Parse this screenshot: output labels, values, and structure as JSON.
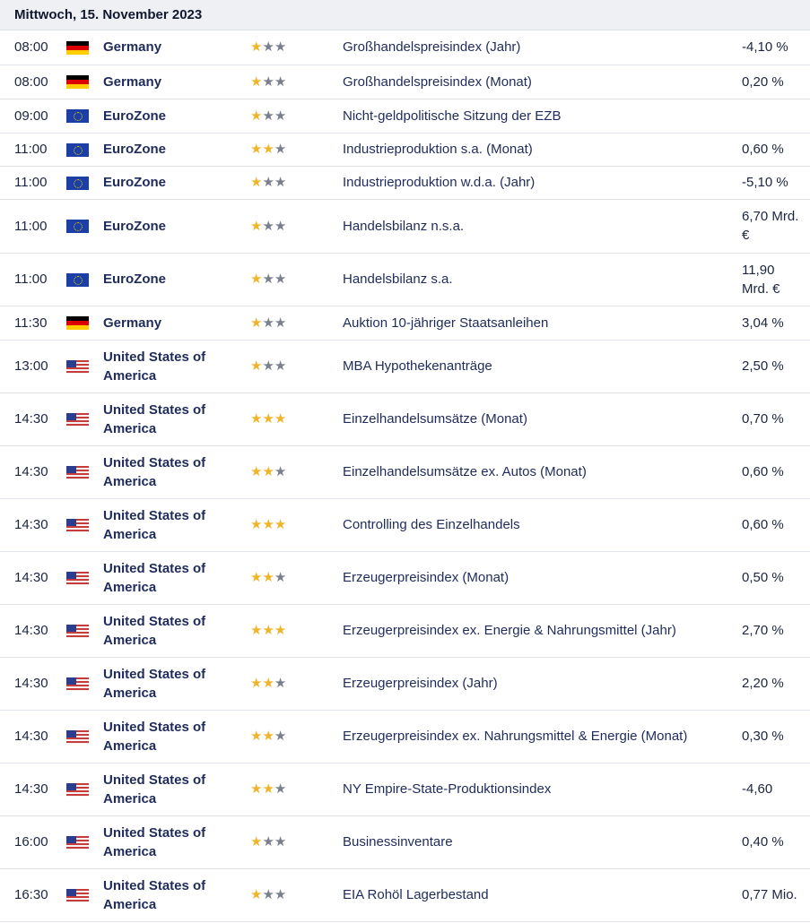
{
  "date_header": "Mittwoch, 15. November 2023",
  "colors": {
    "star_active": "#f0b429",
    "star_inactive": "#7a7f8c",
    "country_text": "#1f2b5b",
    "row_border": "#dfe3ea",
    "header_bg": "#eef0f4"
  },
  "rows": [
    {
      "time": "08:00",
      "flag": "de",
      "country": "Germany",
      "importance": 1,
      "event": "Großhandelspreisindex (Jahr)",
      "value": "-4,10 %",
      "height": 38
    },
    {
      "time": "08:00",
      "flag": "de",
      "country": "Germany",
      "importance": 1,
      "event": "Großhandelspreisindex (Monat)",
      "value": "0,20 %",
      "height": 38
    },
    {
      "time": "09:00",
      "flag": "eu",
      "country": "EuroZone",
      "importance": 1,
      "event": "Nicht-geldpolitische Sitzung der EZB",
      "value": "",
      "height": 38
    },
    {
      "time": "11:00",
      "flag": "eu",
      "country": "EuroZone",
      "importance": 2,
      "event": "Industrieproduktion s.a. (Monat)",
      "value": "0,60 %",
      "height": 37
    },
    {
      "time": "11:00",
      "flag": "eu",
      "country": "EuroZone",
      "importance": 1,
      "event": "Industrieproduktion w.d.a. (Jahr)",
      "value": "-5,10 %",
      "height": 37
    },
    {
      "time": "11:00",
      "flag": "eu",
      "country": "EuroZone",
      "importance": 1,
      "event": "Handelsbilanz n.s.a.",
      "value": "6,70 Mrd. €",
      "height": 60
    },
    {
      "time": "11:00",
      "flag": "eu",
      "country": "EuroZone",
      "importance": 1,
      "event": "Handelsbilanz s.a.",
      "value": "11,90 Mrd. €",
      "height": 59
    },
    {
      "time": "11:30",
      "flag": "de",
      "country": "Germany",
      "importance": 1,
      "event": "Auktion 10-jähriger Staatsanleihen",
      "value": "3,04 %",
      "height": 38
    },
    {
      "time": "13:00",
      "flag": "us",
      "country": "United States of America",
      "importance": 1,
      "event": "MBA Hypothekenanträge",
      "value": "2,50 %",
      "height": 59
    },
    {
      "time": "14:30",
      "flag": "us",
      "country": "United States of America",
      "importance": 3,
      "event": "Einzelhandelsumsätze (Monat)",
      "value": "0,70 %",
      "height": 59
    },
    {
      "time": "14:30",
      "flag": "us",
      "country": "United States of America",
      "importance": 2,
      "event": "Einzelhandelsumsätze ex. Autos (Monat)",
      "value": "0,60 %",
      "height": 59
    },
    {
      "time": "14:30",
      "flag": "us",
      "country": "United States of America",
      "importance": 3,
      "event": "Controlling des Einzelhandels",
      "value": "0,60 %",
      "height": 59
    },
    {
      "time": "14:30",
      "flag": "us",
      "country": "United States of America",
      "importance": 2,
      "event": "Erzeugerpreisindex (Monat)",
      "value": "0,50 %",
      "height": 59
    },
    {
      "time": "14:30",
      "flag": "us",
      "country": "United States of America",
      "importance": 3,
      "event": "Erzeugerpreisindex ex. Energie & Nahrungsmittel (Jahr)",
      "value": "2,70 %",
      "height": 59
    },
    {
      "time": "14:30",
      "flag": "us",
      "country": "United States of America",
      "importance": 2,
      "event": "Erzeugerpreisindex (Jahr)",
      "value": "2,20 %",
      "height": 59
    },
    {
      "time": "14:30",
      "flag": "us",
      "country": "United States of America",
      "importance": 2,
      "event": "Erzeugerpreisindex ex. Nahrungsmittel & Energie (Monat)",
      "value": "0,30 %",
      "height": 59
    },
    {
      "time": "14:30",
      "flag": "us",
      "country": "United States of America",
      "importance": 2,
      "event": "NY Empire-State-Produktionsindex",
      "value": "-4,60",
      "height": 59
    },
    {
      "time": "16:00",
      "flag": "us",
      "country": "United States of America",
      "importance": 1,
      "event": "Businessinventare",
      "value": "0,40 %",
      "height": 59
    },
    {
      "time": "16:30",
      "flag": "us",
      "country": "United States of America",
      "importance": 1,
      "event": "EIA Rohöl Lagerbestand",
      "value": "0,77 Mio.",
      "height": 59
    }
  ]
}
